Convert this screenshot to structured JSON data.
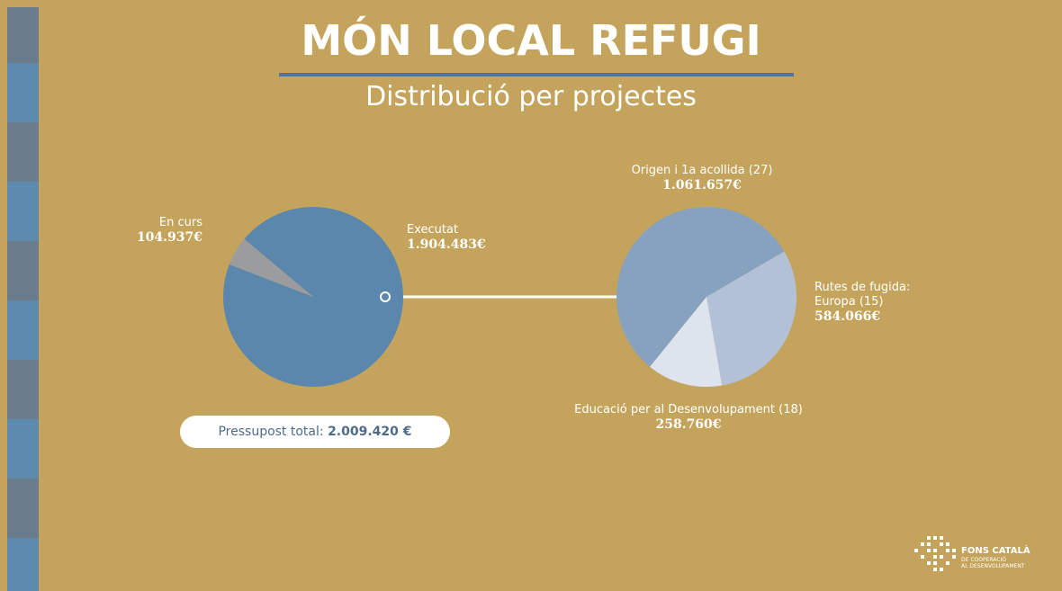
{
  "title": "MÓN LOCAL REFUGI",
  "subtitle": "Distribució per projectes",
  "chart_data": [
    {
      "type": "pie",
      "categories": [
        "Executat",
        "En curs"
      ],
      "values": [
        1904483,
        104937
      ],
      "value_labels": [
        "1.904.483€",
        "104.937€"
      ],
      "colors": [
        "#5b87ad",
        "#9a9c9e"
      ]
    },
    {
      "type": "pie",
      "categories": [
        "Origen i 1a acollida (27)",
        "Rutes de fugida: Europa (15)",
        "Educació per al Desenvolupament (18)"
      ],
      "values": [
        1061657,
        584066,
        258760
      ],
      "value_labels": [
        "1.061.657€",
        "584.066€",
        "258.760€"
      ],
      "colors": [
        "#87a2bf",
        "#b3c1d6",
        "#dde4ee"
      ]
    }
  ],
  "total": {
    "label": "Pressupost total:",
    "value": "2.009.420 €"
  },
  "logo": {
    "name": "FONS CATALÀ",
    "line1": "DE COOPERACIÓ",
    "line2": "AL DESENVOLUPAMENT"
  }
}
